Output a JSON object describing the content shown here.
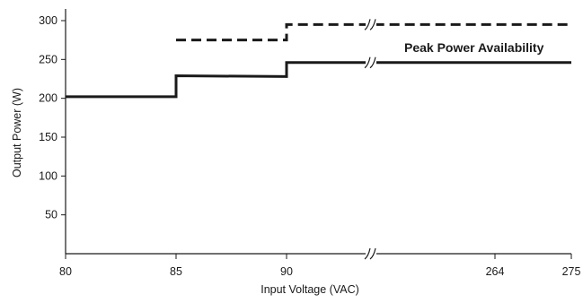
{
  "chart_data": {
    "type": "line",
    "xlabel": "Input Voltage (VAC)",
    "ylabel": "Output Power (W)",
    "ylim": [
      0,
      325
    ],
    "xlim": [
      80,
      275
    ],
    "x_axis_break": {
      "after": 90,
      "before": 264
    },
    "x_ticks": [
      80,
      85,
      90,
      264,
      275
    ],
    "x_tick_labels": [
      "80",
      "85",
      "90",
      "264",
      "275"
    ],
    "y_ticks": [
      50,
      100,
      150,
      200,
      250,
      300
    ],
    "y_tick_labels": [
      "50",
      "100",
      "150",
      "200",
      "250",
      "300"
    ],
    "grid": false,
    "series": [
      {
        "style": "dashed",
        "color": "#1a1a1a",
        "points": [
          [
            85,
            275
          ],
          [
            90,
            275
          ],
          [
            90,
            295
          ],
          [
            275,
            295
          ]
        ]
      },
      {
        "style": "solid",
        "color": "#1a1a1a",
        "points": [
          [
            80,
            202
          ],
          [
            85,
            202
          ],
          [
            85,
            229
          ],
          [
            90,
            228
          ],
          [
            90,
            246
          ],
          [
            275,
            246
          ]
        ]
      }
    ],
    "annotations": [
      {
        "text": "Peak Power Availability"
      }
    ]
  }
}
